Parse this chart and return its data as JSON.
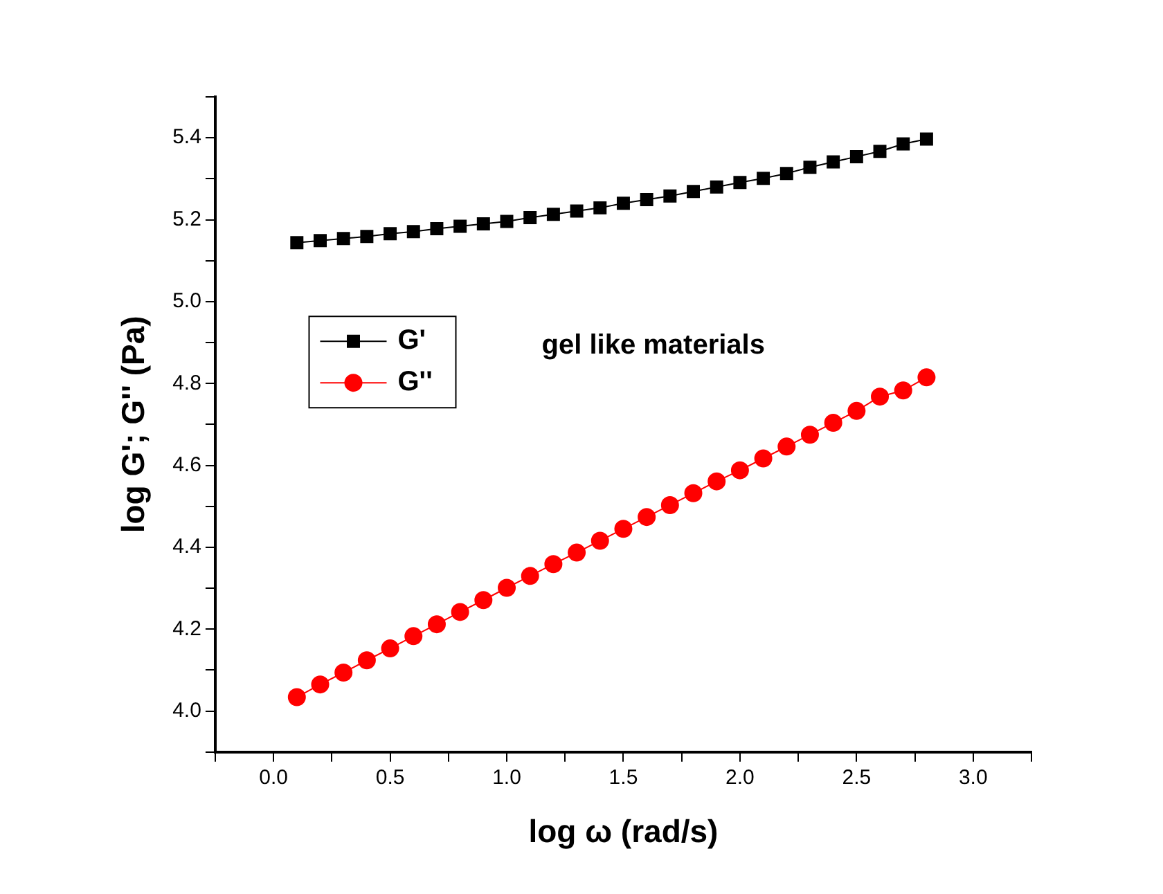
{
  "chart_data": {
    "type": "line",
    "xlabel": "log ω (rad/s)",
    "ylabel": "log G'; G'' (Pa)",
    "annotations": [
      "gel like materials"
    ],
    "x": [
      0.1,
      0.2,
      0.3,
      0.4,
      0.5,
      0.6,
      0.7,
      0.8,
      0.9,
      1.0,
      1.1,
      1.2,
      1.3,
      1.4,
      1.5,
      1.6,
      1.7,
      1.8,
      1.9,
      2.0,
      2.1,
      2.2,
      2.3,
      2.4,
      2.5,
      2.6,
      2.7,
      2.8
    ],
    "series": [
      {
        "name": "G'",
        "color": "#000000",
        "marker": "square",
        "values": [
          5.144,
          5.149,
          5.154,
          5.159,
          5.166,
          5.171,
          5.178,
          5.184,
          5.19,
          5.196,
          5.205,
          5.213,
          5.221,
          5.229,
          5.24,
          5.249,
          5.258,
          5.269,
          5.28,
          5.291,
          5.301,
          5.313,
          5.328,
          5.341,
          5.354,
          5.367,
          5.385,
          5.397
        ]
      },
      {
        "name": "G''",
        "color": "#ff0000",
        "marker": "circle",
        "values": [
          4.034,
          4.065,
          4.094,
          4.124,
          4.153,
          4.183,
          4.212,
          4.242,
          4.271,
          4.301,
          4.33,
          4.359,
          4.387,
          4.416,
          4.445,
          4.474,
          4.503,
          4.532,
          4.561,
          4.588,
          4.617,
          4.646,
          4.675,
          4.704,
          4.733,
          4.768,
          4.783,
          4.815
        ]
      }
    ],
    "xlim": [
      -0.25,
      3.25
    ],
    "xticks": [
      {
        "value": -0.25,
        "label": null
      },
      {
        "value": 0,
        "label": "0.0"
      },
      {
        "value": 0.25,
        "label": null
      },
      {
        "value": 0.5,
        "label": "0.5"
      },
      {
        "value": 0.75,
        "label": null
      },
      {
        "value": 1,
        "label": "1.0"
      },
      {
        "value": 1.25,
        "label": null
      },
      {
        "value": 1.5,
        "label": "1.5"
      },
      {
        "value": 1.75,
        "label": null
      },
      {
        "value": 2,
        "label": "2.0"
      },
      {
        "value": 2.25,
        "label": null
      },
      {
        "value": 2.5,
        "label": "2.5"
      },
      {
        "value": 2.75,
        "label": null
      },
      {
        "value": 3,
        "label": "3.0"
      },
      {
        "value": 3.25,
        "label": null
      }
    ],
    "ylim": [
      3.9,
      5.5
    ],
    "yticks": [
      {
        "value": 3.9,
        "label": null
      },
      {
        "value": 4.0,
        "label": "4.0"
      },
      {
        "value": 4.1,
        "label": null
      },
      {
        "value": 4.2,
        "label": "4.2"
      },
      {
        "value": 4.3,
        "label": null
      },
      {
        "value": 4.4,
        "label": "4.4"
      },
      {
        "value": 4.5,
        "label": null
      },
      {
        "value": 4.6,
        "label": "4.6"
      },
      {
        "value": 4.7,
        "label": null
      },
      {
        "value": 4.8,
        "label": "4.8"
      },
      {
        "value": 4.9,
        "label": null
      },
      {
        "value": 5.0,
        "label": "5.0"
      },
      {
        "value": 5.1,
        "label": null
      },
      {
        "value": 5.2,
        "label": "5.2"
      },
      {
        "value": 5.3,
        "label": null
      },
      {
        "value": 5.4,
        "label": "5.4"
      },
      {
        "value": 5.5,
        "label": null
      }
    ],
    "grid": false,
    "legend": "left",
    "line_style": "solid"
  }
}
